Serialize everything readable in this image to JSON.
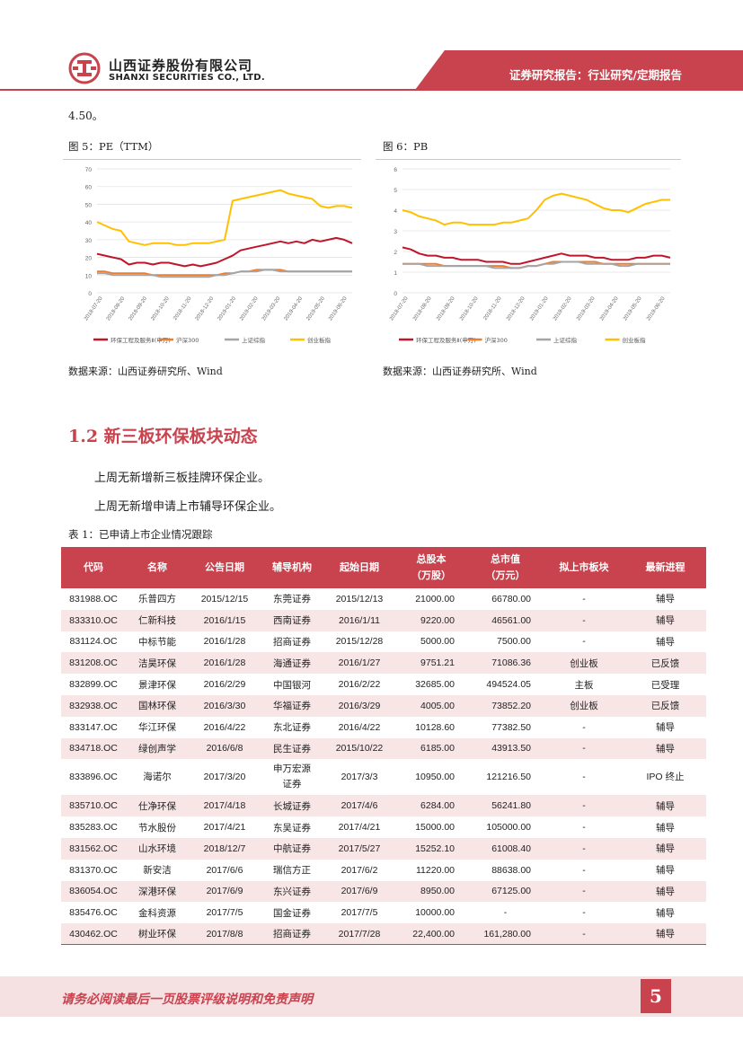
{
  "header": {
    "company_cn": "山西证券股份有限公司",
    "company_en": "SHANXI SECURITIES CO., LTD.",
    "report_type": "证券研究报告：行业研究/定期报告"
  },
  "prev_text": "4.50。",
  "figure5": {
    "title": "图 5：PE（TTM）",
    "source": "数据来源：山西证券研究所、Wind"
  },
  "figure6": {
    "title": "图 6：PB",
    "source": "数据来源：山西证券研究所、Wind"
  },
  "chart_data": [
    {
      "type": "line",
      "title": "",
      "ylim": [
        0,
        70
      ],
      "yticks": [
        "70",
        "60",
        "50",
        "40",
        "30",
        "20",
        "10",
        "0"
      ],
      "xticks": [
        "2018-07-20",
        "2018-08-20",
        "2018-09-20",
        "2018-10-20",
        "2018-11-20",
        "2018-12-20",
        "2019-01-20",
        "2019-02-20",
        "2019-03-20",
        "2019-04-20",
        "2019-05-20",
        "2019-06-20"
      ],
      "legend": [
        "环保工程及服务Ⅱ(申万)",
        "沪深300",
        "上证综指",
        "创业板指"
      ],
      "colors": [
        "#c0162b",
        "#ed7d31",
        "#a5a5a5",
        "#ffc000"
      ],
      "series": [
        {
          "name": "环保工程及服务Ⅱ(申万)",
          "values": [
            22,
            21,
            20,
            19,
            16,
            17,
            17,
            16,
            17,
            17,
            16,
            15,
            16,
            15,
            16,
            17,
            19,
            21,
            24,
            25,
            26,
            27,
            28,
            29,
            28,
            29,
            28,
            30,
            29,
            30,
            31,
            30,
            28
          ]
        },
        {
          "name": "沪深300",
          "values": [
            12,
            12,
            11,
            11,
            11,
            11,
            11,
            10,
            10,
            10,
            10,
            10,
            10,
            10,
            10,
            10,
            11,
            11,
            12,
            12,
            13,
            13,
            13,
            13,
            12,
            12,
            12,
            12,
            12,
            12,
            12,
            12,
            12
          ]
        },
        {
          "name": "上证综指",
          "values": [
            11,
            11,
            10,
            10,
            10,
            10,
            10,
            10,
            9,
            9,
            9,
            9,
            9,
            9,
            9,
            10,
            10,
            11,
            12,
            12,
            12,
            13,
            13,
            12,
            12,
            12,
            12,
            12,
            12,
            12,
            12,
            12,
            12
          ]
        },
        {
          "name": "创业板指",
          "values": [
            40,
            38,
            36,
            35,
            29,
            28,
            27,
            28,
            28,
            28,
            27,
            27,
            28,
            28,
            28,
            29,
            30,
            52,
            53,
            54,
            55,
            56,
            57,
            58,
            56,
            55,
            54,
            53,
            49,
            48,
            49,
            49,
            48
          ]
        }
      ]
    },
    {
      "type": "line",
      "title": "",
      "ylim": [
        0,
        6
      ],
      "yticks": [
        "6",
        "5",
        "4",
        "3",
        "2",
        "1",
        "0"
      ],
      "xticks": [
        "2018-07-20",
        "2018-08-20",
        "2018-09-20",
        "2018-10-20",
        "2018-11-20",
        "2018-12-20",
        "2019-01-20",
        "2019-02-20",
        "2019-03-20",
        "2019-04-20",
        "2019-05-20",
        "2019-06-20"
      ],
      "legend": [
        "环保工程及服务Ⅱ(申万)",
        "沪深300",
        "上证综指",
        "创业板指"
      ],
      "colors": [
        "#c0162b",
        "#ed7d31",
        "#a5a5a5",
        "#ffc000"
      ],
      "series": [
        {
          "name": "环保工程及服务Ⅱ(申万)",
          "values": [
            2.2,
            2.1,
            1.9,
            1.8,
            1.8,
            1.7,
            1.7,
            1.6,
            1.6,
            1.6,
            1.5,
            1.5,
            1.5,
            1.4,
            1.4,
            1.5,
            1.6,
            1.7,
            1.8,
            1.9,
            1.8,
            1.8,
            1.8,
            1.7,
            1.7,
            1.6,
            1.6,
            1.6,
            1.7,
            1.7,
            1.8,
            1.8,
            1.7
          ]
        },
        {
          "name": "沪深300",
          "values": [
            1.4,
            1.4,
            1.4,
            1.4,
            1.4,
            1.3,
            1.3,
            1.3,
            1.3,
            1.3,
            1.3,
            1.3,
            1.3,
            1.2,
            1.2,
            1.3,
            1.3,
            1.4,
            1.5,
            1.5,
            1.5,
            1.5,
            1.5,
            1.5,
            1.4,
            1.4,
            1.4,
            1.4,
            1.4,
            1.4,
            1.4,
            1.4,
            1.4
          ]
        },
        {
          "name": "上证综指",
          "values": [
            1.4,
            1.4,
            1.4,
            1.3,
            1.3,
            1.3,
            1.3,
            1.3,
            1.3,
            1.3,
            1.3,
            1.2,
            1.2,
            1.2,
            1.2,
            1.3,
            1.3,
            1.4,
            1.4,
            1.5,
            1.5,
            1.5,
            1.4,
            1.4,
            1.4,
            1.4,
            1.3,
            1.3,
            1.4,
            1.4,
            1.4,
            1.4,
            1.4
          ]
        },
        {
          "name": "创业板指",
          "values": [
            4.0,
            3.9,
            3.7,
            3.6,
            3.5,
            3.3,
            3.4,
            3.4,
            3.3,
            3.3,
            3.3,
            3.3,
            3.4,
            3.4,
            3.5,
            3.6,
            4.0,
            4.5,
            4.7,
            4.8,
            4.7,
            4.6,
            4.5,
            4.3,
            4.1,
            4.0,
            4.0,
            3.9,
            4.1,
            4.3,
            4.4,
            4.5,
            4.5
          ]
        }
      ]
    }
  ],
  "section": {
    "title": "1.2  新三板环保板块动态",
    "para1": "上周无新增新三板挂牌环保企业。",
    "para2": "上周无新增申请上市辅导环保企业。"
  },
  "table": {
    "caption": "表 1：已申请上市企业情况跟踪",
    "headers": [
      "代码",
      "名称",
      "公告日期",
      "辅导机构",
      "起始日期",
      "总股本\n（万股）",
      "总市值\n（万元）",
      "拟上市板块",
      "最新进程"
    ],
    "rows": [
      [
        "831988.OC",
        "乐普四方",
        "2015/12/15",
        "东莞证券",
        "2015/12/13",
        "21000.00",
        "66780.00",
        "-",
        "辅导"
      ],
      [
        "833310.OC",
        "仁新科技",
        "2016/1/15",
        "西南证券",
        "2016/1/11",
        "9220.00",
        "46561.00",
        "-",
        "辅导"
      ],
      [
        "831124.OC",
        "中标节能",
        "2016/1/28",
        "招商证券",
        "2015/12/28",
        "5000.00",
        "7500.00",
        "-",
        "辅导"
      ],
      [
        "831208.OC",
        "洁昊环保",
        "2016/1/28",
        "海通证券",
        "2016/1/27",
        "9751.21",
        "71086.36",
        "创业板",
        "已反馈"
      ],
      [
        "832899.OC",
        "景津环保",
        "2016/2/29",
        "中国银河",
        "2016/2/22",
        "32685.00",
        "494524.05",
        "主板",
        "已受理"
      ],
      [
        "832938.OC",
        "国林环保",
        "2016/3/30",
        "华福证券",
        "2016/3/29",
        "4005.00",
        "73852.20",
        "创业板",
        "已反馈"
      ],
      [
        "833147.OC",
        "华江环保",
        "2016/4/22",
        "东北证券",
        "2016/4/22",
        "10128.60",
        "77382.50",
        "-",
        "辅导"
      ],
      [
        "834718.OC",
        "绿创声学",
        "2016/6/8",
        "民生证券",
        "2015/10/22",
        "6185.00",
        "43913.50",
        "-",
        "辅导"
      ],
      [
        "833896.OC",
        "海诺尔",
        "2017/3/20",
        "申万宏源\n证券",
        "2017/3/3",
        "10950.00",
        "121216.50",
        "-",
        "IPO 终止"
      ],
      [
        "835710.OC",
        "仕净环保",
        "2017/4/18",
        "长城证券",
        "2017/4/6",
        "6284.00",
        "56241.80",
        "-",
        "辅导"
      ],
      [
        "835283.OC",
        "节水股份",
        "2017/4/21",
        "东吴证券",
        "2017/4/21",
        "15000.00",
        "105000.00",
        "-",
        "辅导"
      ],
      [
        "831562.OC",
        "山水环境",
        "2018/12/7",
        "中航证券",
        "2017/5/27",
        "15252.10",
        "61008.40",
        "-",
        "辅导"
      ],
      [
        "831370.OC",
        "新安洁",
        "2017/6/6",
        "瑞信方正",
        "2017/6/2",
        "11220.00",
        "88638.00",
        "-",
        "辅导"
      ],
      [
        "836054.OC",
        "深港环保",
        "2017/6/9",
        "东兴证券",
        "2017/6/9",
        "8950.00",
        "67125.00",
        "-",
        "辅导"
      ],
      [
        "835476.OC",
        "金科资源",
        "2017/7/5",
        "国金证券",
        "2017/7/5",
        "10000.00",
        "-",
        "-",
        "辅导"
      ],
      [
        "430462.OC",
        "树业环保",
        "2017/8/8",
        "招商证券",
        "2017/7/28",
        "22,400.00",
        "161,280.00",
        "-",
        "辅导"
      ]
    ]
  },
  "footer": {
    "disclaimer": "请务必阅读最后一页股票评级说明和免责声明",
    "page_number": "5"
  }
}
